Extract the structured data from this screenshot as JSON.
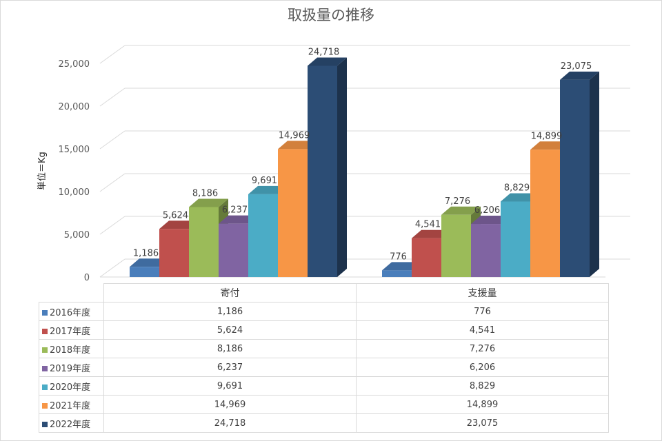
{
  "chart_data": {
    "type": "bar",
    "title": "取扱量の推移",
    "ylabel": "単位＝Kg",
    "xlabel": "",
    "categories": [
      "寄付",
      "支援量"
    ],
    "ylim": [
      0,
      25000
    ],
    "yticks": [
      "0",
      "5,000",
      "10,000",
      "15,000",
      "20,000",
      "25,000"
    ],
    "grid": true,
    "legend": "table-below",
    "series": [
      {
        "name": "2016年度",
        "color": "#4a7ebb",
        "values": [
          1186,
          776
        ],
        "labels": [
          "1,186",
          "776"
        ]
      },
      {
        "name": "2017年度",
        "color": "#c0504d",
        "values": [
          5624,
          4541
        ],
        "labels": [
          "5,624",
          "4,541"
        ]
      },
      {
        "name": "2018年度",
        "color": "#9bbb59",
        "values": [
          8186,
          7276
        ],
        "labels": [
          "8,186",
          "7,276"
        ]
      },
      {
        "name": "2019年度",
        "color": "#8064a2",
        "values": [
          6237,
          6206
        ],
        "labels": [
          "6,237",
          "6,206"
        ]
      },
      {
        "name": "2020年度",
        "color": "#4bacc6",
        "values": [
          9691,
          8829
        ],
        "labels": [
          "9,691",
          "8,829"
        ]
      },
      {
        "name": "2021年度",
        "color": "#f79646",
        "values": [
          14969,
          14899
        ],
        "labels": [
          "14,969",
          "14,899"
        ]
      },
      {
        "name": "2022年度",
        "color": "#2c4d75",
        "values": [
          24718,
          23075
        ],
        "labels": [
          "24,718",
          "23,075"
        ]
      }
    ]
  }
}
